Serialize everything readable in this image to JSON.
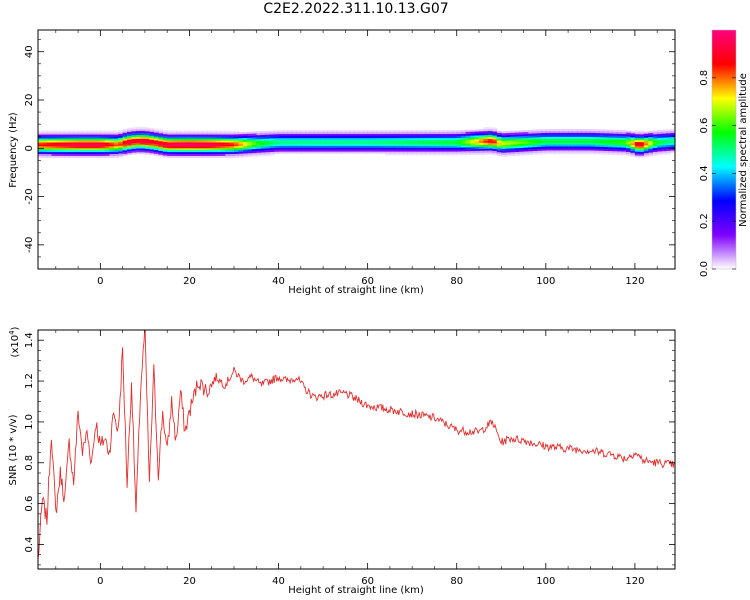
{
  "title": "C2E2.2022.311.10.13.G07",
  "chart_data": [
    {
      "type": "heatmap",
      "xlabel": "Height of straight line (km)",
      "ylabel": "Frequency (Hz)",
      "xlim": [
        -14,
        129
      ],
      "ylim": [
        -50,
        49
      ],
      "xticks": [
        0,
        20,
        40,
        60,
        80,
        100,
        120
      ],
      "yticks": [
        -40,
        -20,
        0,
        20,
        40
      ],
      "colorbar": {
        "label": "Normalized spectral amplitude",
        "range": [
          0,
          1
        ],
        "ticks": [
          "0.0",
          "0.2",
          "0.4",
          "0.6",
          "0.8"
        ],
        "colormap": "rainbow",
        "colors": [
          "#ffffff",
          "#7f00ff",
          "#0000ff",
          "#00ffff",
          "#00ff00",
          "#ffff00",
          "#ff0000",
          "#ff0080"
        ]
      },
      "band": {
        "x": [
          -14,
          -10,
          -5,
          0,
          4,
          6,
          8,
          10,
          12,
          15,
          20,
          25,
          30,
          35,
          40,
          60,
          80,
          88,
          90,
          100,
          110,
          118,
          121,
          125,
          129
        ],
        "center": [
          1.5,
          1.5,
          1.5,
          1.5,
          1.5,
          2.5,
          3,
          3,
          2.5,
          1.5,
          1.5,
          1.5,
          1.5,
          2,
          2.5,
          2.5,
          2.5,
          3,
          2,
          3,
          3,
          2.5,
          1.5,
          2.5,
          3
        ],
        "peak": [
          0.85,
          0.9,
          0.95,
          0.95,
          0.8,
          0.95,
          0.9,
          0.95,
          0.9,
          0.95,
          0.98,
          0.95,
          0.85,
          0.6,
          0.5,
          0.5,
          0.55,
          0.9,
          0.7,
          0.55,
          0.55,
          0.6,
          0.95,
          0.55,
          0.5
        ]
      }
    },
    {
      "type": "line",
      "xlabel": "Height of straight line (km)",
      "ylabel": "SNR (10 * v/v)",
      "yscale_label": "(x10",
      "yscale_exponent": "4",
      "yscale_suffix": ")",
      "xlim": [
        -14,
        129
      ],
      "ylim": [
        0.28,
        1.45
      ],
      "xticks": [
        0,
        20,
        40,
        60,
        80,
        100,
        120
      ],
      "yticks": [
        "0.4",
        "0.6",
        "0.8",
        "1.0",
        "1.2",
        "1.4"
      ],
      "line_color": "#e03030",
      "series": [
        {
          "x": [
            -14,
            -13,
            -12,
            -11,
            -10,
            -9,
            -8,
            -7,
            -6,
            -5,
            -4,
            -3,
            -2,
            -1,
            0,
            1,
            2,
            3,
            4,
            5,
            6,
            7,
            8,
            9,
            10,
            11,
            12,
            13,
            14,
            15,
            16,
            17,
            18,
            19,
            20,
            22,
            24,
            26,
            28,
            30,
            32,
            34,
            36,
            38,
            40,
            42,
            44,
            46,
            48,
            50,
            55,
            60,
            65,
            70,
            75,
            80,
            85,
            88,
            90,
            92,
            95,
            100,
            105,
            110,
            115,
            118,
            120,
            122,
            125,
            129
          ],
          "y": [
            0.32,
            0.62,
            0.52,
            0.95,
            0.55,
            0.75,
            0.62,
            0.9,
            0.7,
            1.05,
            0.85,
            0.95,
            0.8,
            1.0,
            0.88,
            0.92,
            0.85,
            1.05,
            0.95,
            1.35,
            0.7,
            1.2,
            0.55,
            1.15,
            1.45,
            0.7,
            1.25,
            0.75,
            1.05,
            0.85,
            1.1,
            0.9,
            1.15,
            0.95,
            1.05,
            1.2,
            1.15,
            1.22,
            1.18,
            1.25,
            1.2,
            1.22,
            1.18,
            1.2,
            1.22,
            1.2,
            1.22,
            1.16,
            1.12,
            1.13,
            1.14,
            1.08,
            1.06,
            1.04,
            1.02,
            0.96,
            0.95,
            1.0,
            0.9,
            0.92,
            0.91,
            0.88,
            0.87,
            0.86,
            0.84,
            0.82,
            0.85,
            0.81,
            0.8,
            0.79
          ]
        }
      ]
    }
  ]
}
